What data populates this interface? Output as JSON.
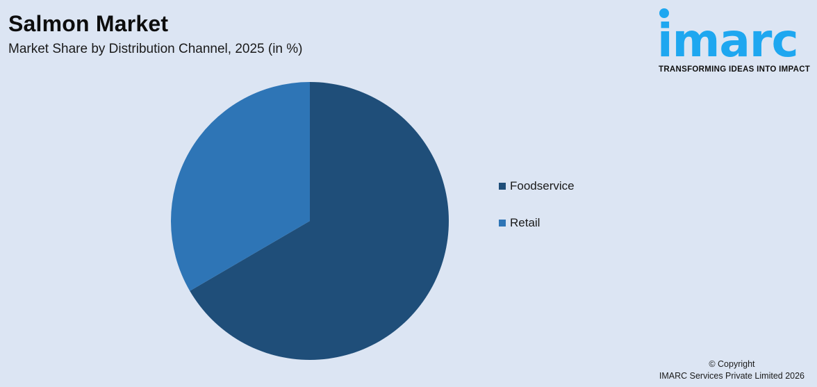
{
  "header": {
    "title": "Salmon Market",
    "subtitle": "Market Share by Distribution Channel, 2025 (in %)"
  },
  "logo": {
    "wordmark": "imarc",
    "tagline": "TRANSFORMING IDEAS INTO IMPACT",
    "color": "#1ea7f0"
  },
  "chart_data": {
    "type": "pie",
    "title": "Salmon Market",
    "subtitle": "Market Share by Distribution Channel, 2025 (in %)",
    "categories": [
      "Foodservice",
      "Retail"
    ],
    "values": [
      66.6,
      33.4
    ],
    "colors": [
      "#1f4e79",
      "#2e75b6"
    ],
    "start_angle_deg": 0,
    "direction": "clockwise",
    "legend_position": "right",
    "data_labels": false
  },
  "legend": {
    "items": [
      {
        "label": "Foodservice",
        "color": "#1f4e79"
      },
      {
        "label": "Retail",
        "color": "#2e75b6"
      }
    ]
  },
  "footer": {
    "copyright_line1": "© Copyright",
    "copyright_line2": "IMARC Services Private Limited 2026"
  }
}
